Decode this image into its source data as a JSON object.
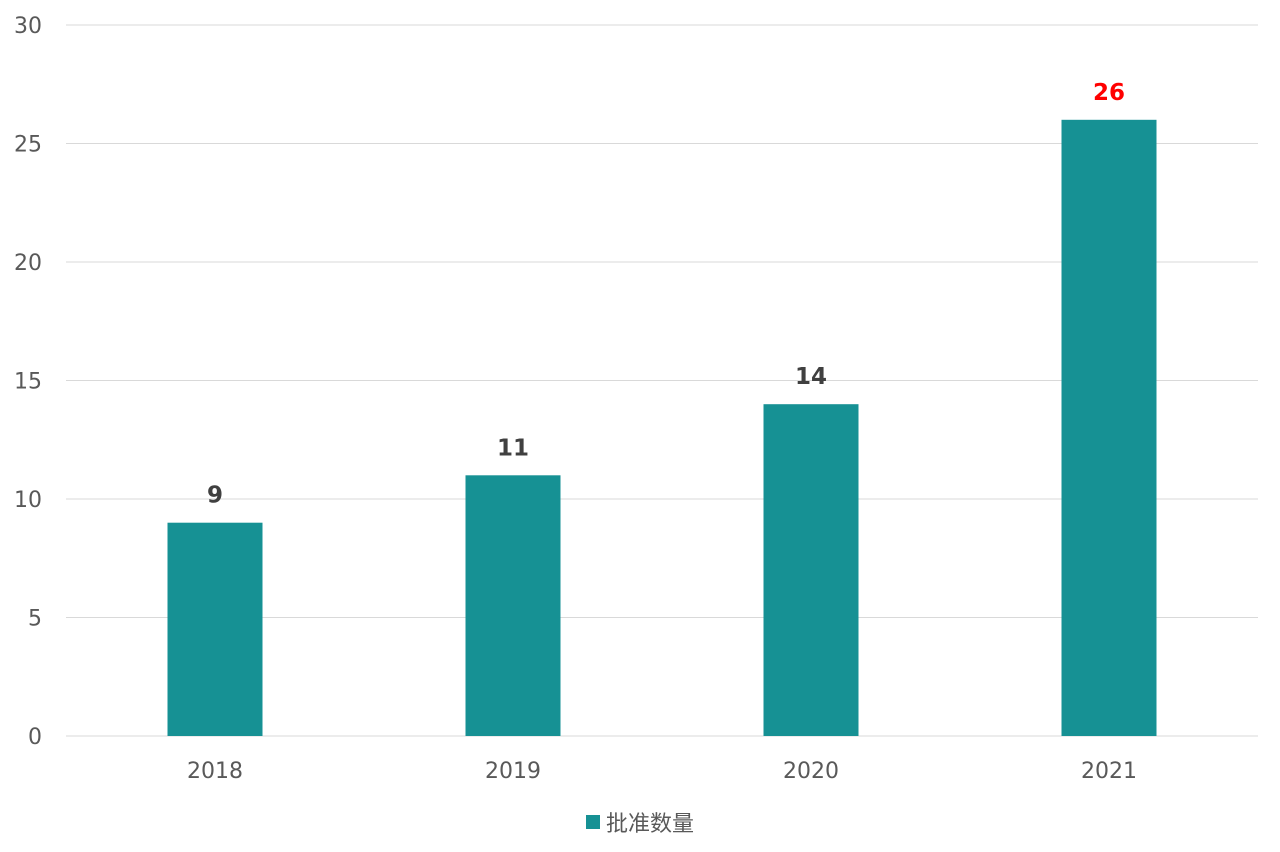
{
  "chart_data": {
    "type": "bar",
    "categories": [
      "2018",
      "2019",
      "2020",
      "2021"
    ],
    "series": [
      {
        "name": "批准数量",
        "values": [
          9,
          11,
          14,
          26
        ],
        "color": "#169194"
      }
    ],
    "data_labels": [
      "9",
      "11",
      "14",
      "26"
    ],
    "label_colors": [
      "#404040",
      "#404040",
      "#404040",
      "#ff0000"
    ],
    "y_ticks": [
      "0",
      "5",
      "10",
      "15",
      "20",
      "25",
      "30"
    ],
    "ylim": [
      0,
      30
    ],
    "grid": true,
    "legend_position": "bottom"
  }
}
